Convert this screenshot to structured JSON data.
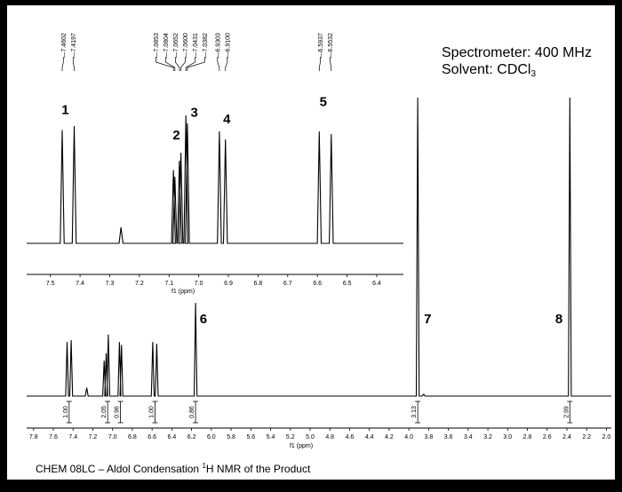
{
  "chart_data": [
    {
      "type": "nmr_spectrum_expansion",
      "xlabel": "f1 (ppm)",
      "xlim": [
        7.58,
        6.31
      ],
      "x_ticks": [
        "7.5",
        "7.4",
        "7.3",
        "7.2",
        "7.1",
        "7.0",
        "6.9",
        "6.8",
        "6.7",
        "6.6",
        "6.5",
        "6.4"
      ],
      "shift_labels": [
        "7.4602",
        "7.4197",
        "7.0853",
        "7.0804",
        "7.0652",
        "7.0600",
        "7.0431",
        "7.0382",
        "6.9303",
        "6.9100",
        "6.5937",
        "6.5532"
      ],
      "peaks": [
        {
          "x": 7.4602,
          "height": 0.85
        },
        {
          "x": 7.4197,
          "height": 0.88
        },
        {
          "x": 7.262,
          "height": 0.12
        },
        {
          "x": 7.0853,
          "height": 0.55
        },
        {
          "x": 7.0804,
          "height": 0.5
        },
        {
          "x": 7.0652,
          "height": 0.62
        },
        {
          "x": 7.06,
          "height": 0.68
        },
        {
          "x": 7.0431,
          "height": 0.96
        },
        {
          "x": 7.0382,
          "height": 0.9
        },
        {
          "x": 6.9303,
          "height": 0.84
        },
        {
          "x": 6.91,
          "height": 0.78
        },
        {
          "x": 6.5937,
          "height": 0.84
        },
        {
          "x": 6.5532,
          "height": 0.82
        }
      ],
      "peak_labels": [
        {
          "text": "1",
          "x": 7.45,
          "level": 0.97
        },
        {
          "text": "2",
          "x": 7.075,
          "level": 0.78
        },
        {
          "text": "3",
          "x": 7.015,
          "level": 0.95
        },
        {
          "text": "4",
          "x": 6.905,
          "level": 0.9
        },
        {
          "text": "5",
          "x": 6.58,
          "level": 1.03
        }
      ]
    },
    {
      "type": "nmr_spectrum_full",
      "xlabel": "f1 (ppm)",
      "xlim": [
        7.87,
        1.95
      ],
      "x_ticks": [
        "7.8",
        "7.6",
        "7.4",
        "7.2",
        "7.0",
        "6.8",
        "6.6",
        "6.4",
        "6.2",
        "6.0",
        "5.8",
        "5.6",
        "5.4",
        "5.2",
        "5.0",
        "4.8",
        "4.6",
        "4.4",
        "4.2",
        "4.0",
        "3.8",
        "3.6",
        "3.4",
        "3.2",
        "3.0",
        "2.8",
        "2.6",
        "2.4",
        "2.2",
        "2.0"
      ],
      "peaks": [
        {
          "x": 7.4602,
          "height": 0.58
        },
        {
          "x": 7.4197,
          "height": 0.6
        },
        {
          "x": 7.262,
          "height": 0.09
        },
        {
          "x": 7.0853,
          "height": 0.38
        },
        {
          "x": 7.0652,
          "height": 0.46
        },
        {
          "x": 7.0431,
          "height": 0.66
        },
        {
          "x": 6.9303,
          "height": 0.58
        },
        {
          "x": 6.91,
          "height": 0.55
        },
        {
          "x": 6.5937,
          "height": 0.58
        },
        {
          "x": 6.5532,
          "height": 0.56
        },
        {
          "x": 6.16,
          "height": 1.0
        },
        {
          "x": 3.91,
          "height": 3.2
        },
        {
          "x": 3.85,
          "height": 0.02
        },
        {
          "x": 2.37,
          "height": 3.2
        }
      ],
      "integrals": [
        {
          "x": 7.44,
          "value": "1.00"
        },
        {
          "x": 7.05,
          "value": "2.05"
        },
        {
          "x": 6.92,
          "value": "0.96"
        },
        {
          "x": 6.57,
          "value": "1.00"
        },
        {
          "x": 6.16,
          "value": "0.86"
        },
        {
          "x": 3.91,
          "value": "3.13"
        },
        {
          "x": 2.37,
          "value": "2.99"
        }
      ],
      "peak_labels": [
        {
          "text": "6",
          "x": 6.08,
          "level": 0.78
        },
        {
          "text": "7",
          "x": 3.81,
          "level": 0.78
        },
        {
          "text": "8",
          "x": 2.48,
          "level": 0.78
        }
      ]
    }
  ],
  "info": {
    "spectrometer": "Spectrometer: 400 MHz",
    "solvent_prefix": "Solvent: CDCl",
    "solvent_sub": "3"
  },
  "caption": {
    "prefix": "CHEM 08LC – Aldol Condensation ",
    "sup": "1",
    "suffix": "H NMR of the Product"
  }
}
